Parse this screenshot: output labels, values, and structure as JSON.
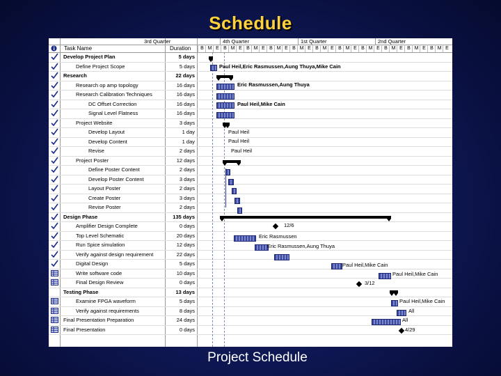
{
  "slide_title": "Schedule",
  "caption": "Project Schedule",
  "header": {
    "task_name": "Task Name",
    "duration": "Duration",
    "quarters": [
      "3rd Quarter",
      "4th Quarter",
      "1st Quarter",
      "2nd Quarter"
    ],
    "months": [
      "B",
      "M",
      "E",
      "B",
      "M",
      "E",
      "B",
      "M",
      "E",
      "B",
      "M",
      "E",
      "B",
      "M",
      "E",
      "B",
      "M",
      "E",
      "B",
      "M",
      "E",
      "B",
      "M",
      "E",
      "B",
      "M",
      "E",
      "B",
      "M",
      "E",
      "B",
      "M",
      "E"
    ]
  },
  "tasks": [
    {
      "name": "Develop Project Plan",
      "dur": "5 days",
      "bold": true,
      "indent": 0,
      "icon": "check"
    },
    {
      "name": "Define Project Scope",
      "dur": "5 days",
      "bold": false,
      "indent": 1,
      "icon": "check"
    },
    {
      "name": "Research",
      "dur": "22 days",
      "bold": true,
      "indent": 0,
      "icon": "check"
    },
    {
      "name": "Research op amp topology",
      "dur": "16 days",
      "bold": false,
      "indent": 1,
      "icon": "check"
    },
    {
      "name": "Research Calibration Techniques",
      "dur": "16 days",
      "bold": false,
      "indent": 1,
      "icon": "check"
    },
    {
      "name": "DC Offset Correction",
      "dur": "16 days",
      "bold": false,
      "indent": 2,
      "icon": "check"
    },
    {
      "name": "Signal Level Flatness",
      "dur": "16 days",
      "bold": false,
      "indent": 2,
      "icon": "check"
    },
    {
      "name": "Project Website",
      "dur": "3 days",
      "bold": false,
      "indent": 1,
      "icon": "check"
    },
    {
      "name": "Develop Layout",
      "dur": "1 day",
      "bold": false,
      "indent": 2,
      "icon": "check"
    },
    {
      "name": "Develop Content",
      "dur": "1 day",
      "bold": false,
      "indent": 2,
      "icon": "check"
    },
    {
      "name": "Revise",
      "dur": "2 days",
      "bold": false,
      "indent": 2,
      "icon": "check"
    },
    {
      "name": "Project Poster",
      "dur": "12 days",
      "bold": false,
      "indent": 1,
      "icon": "check"
    },
    {
      "name": "Define Poster Content",
      "dur": "2 days",
      "bold": false,
      "indent": 2,
      "icon": "check"
    },
    {
      "name": "Develop Poster Content",
      "dur": "3 days",
      "bold": false,
      "indent": 2,
      "icon": "check"
    },
    {
      "name": "Layout Poster",
      "dur": "2 days",
      "bold": false,
      "indent": 2,
      "icon": "check"
    },
    {
      "name": "Create Poster",
      "dur": "3 days",
      "bold": false,
      "indent": 2,
      "icon": "check"
    },
    {
      "name": "Revise Poster",
      "dur": "2 days",
      "bold": false,
      "indent": 2,
      "icon": "check"
    },
    {
      "name": "Design Phase",
      "dur": "135 days",
      "bold": true,
      "indent": 0,
      "icon": "check"
    },
    {
      "name": "Amplifier Design Complete",
      "dur": "0 days",
      "bold": false,
      "indent": 1,
      "icon": "check"
    },
    {
      "name": "Top Level Schematic",
      "dur": "20 days",
      "bold": false,
      "indent": 1,
      "icon": "check"
    },
    {
      "name": "Run Spice simulation",
      "dur": "12 days",
      "bold": false,
      "indent": 1,
      "icon": "check"
    },
    {
      "name": "Verify against design requirement",
      "dur": "22 days",
      "bold": false,
      "indent": 1,
      "icon": "check"
    },
    {
      "name": "Digital Design",
      "dur": "5 days",
      "bold": false,
      "indent": 1,
      "icon": "check"
    },
    {
      "name": "Write software code",
      "dur": "10 days",
      "bold": false,
      "indent": 1,
      "icon": "grid"
    },
    {
      "name": "Final Design Review",
      "dur": "0 days",
      "bold": false,
      "indent": 1,
      "icon": "grid"
    },
    {
      "name": "Testing Phase",
      "dur": "13 days",
      "bold": true,
      "indent": 0,
      "icon": "none"
    },
    {
      "name": "Examine FPGA waveform",
      "dur": "5 days",
      "bold": false,
      "indent": 1,
      "icon": "grid"
    },
    {
      "name": "Verify against requirements",
      "dur": "8 days",
      "bold": false,
      "indent": 1,
      "icon": "grid"
    },
    {
      "name": "Final Presentation Preparation",
      "dur": "24 days",
      "bold": false,
      "indent": 0,
      "icon": "grid"
    },
    {
      "name": "Final Presentation",
      "dur": "0 days",
      "bold": false,
      "indent": 0,
      "icon": "grid"
    }
  ],
  "gantt_labels": [
    "Paul Heil,Eric Rasmussen,Aung Thuya,Mike Cain",
    "Eric Rasmussen,Aung Thuya",
    "Paul Heil,Mike Cain",
    "Paul Heil",
    "Paul Heil",
    "Paul Heil",
    "12/6",
    "Eric Rasmussen",
    "Eric Rasmussen,Aung Thuya",
    "Paul Heil,Mike Cain",
    "Paul Heil,Mike Cain",
    "3/12",
    "Paul Heil,Mike Cain",
    "All",
    "All",
    "4/29"
  ]
}
